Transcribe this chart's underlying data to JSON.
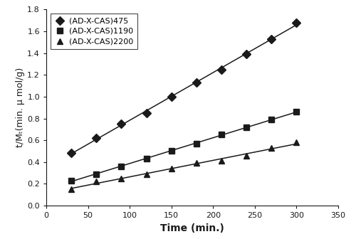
{
  "series": [
    {
      "label": "(AD-X-CAS)475",
      "marker": "D",
      "x": [
        30,
        60,
        90,
        120,
        150,
        180,
        210,
        240,
        270,
        300
      ],
      "y": [
        0.48,
        0.62,
        0.75,
        0.85,
        1.0,
        1.13,
        1.25,
        1.39,
        1.53,
        1.68
      ]
    },
    {
      "label": "(AD-X-CAS)1190",
      "marker": "s",
      "x": [
        30,
        60,
        90,
        120,
        150,
        180,
        210,
        240,
        270,
        300
      ],
      "y": [
        0.23,
        0.29,
        0.36,
        0.43,
        0.5,
        0.57,
        0.65,
        0.72,
        0.79,
        0.86
      ]
    },
    {
      "label": "(AD-X-CAS)2200",
      "marker": "^",
      "x": [
        30,
        60,
        90,
        120,
        150,
        180,
        210,
        240,
        270,
        300
      ],
      "y": [
        0.15,
        0.22,
        0.25,
        0.29,
        0.34,
        0.39,
        0.41,
        0.46,
        0.53,
        0.58
      ]
    }
  ],
  "xlabel": "Time (min.)",
  "ylabel": "t/Mₜ(min. µ mol/g)",
  "xlim": [
    0,
    350
  ],
  "ylim": [
    0,
    1.8
  ],
  "xticks": [
    0,
    50,
    100,
    150,
    200,
    250,
    300,
    350
  ],
  "yticks": [
    0,
    0.2,
    0.4,
    0.6,
    0.8,
    1.0,
    1.2,
    1.4,
    1.6,
    1.8
  ],
  "color": "#1a1a1a",
  "linewidth": 1.1,
  "markersize": 6,
  "legend_fontsize": 8,
  "axis_label_fontsize": 10,
  "tick_fontsize": 8,
  "figsize": [
    5.0,
    3.36
  ],
  "dpi": 100
}
